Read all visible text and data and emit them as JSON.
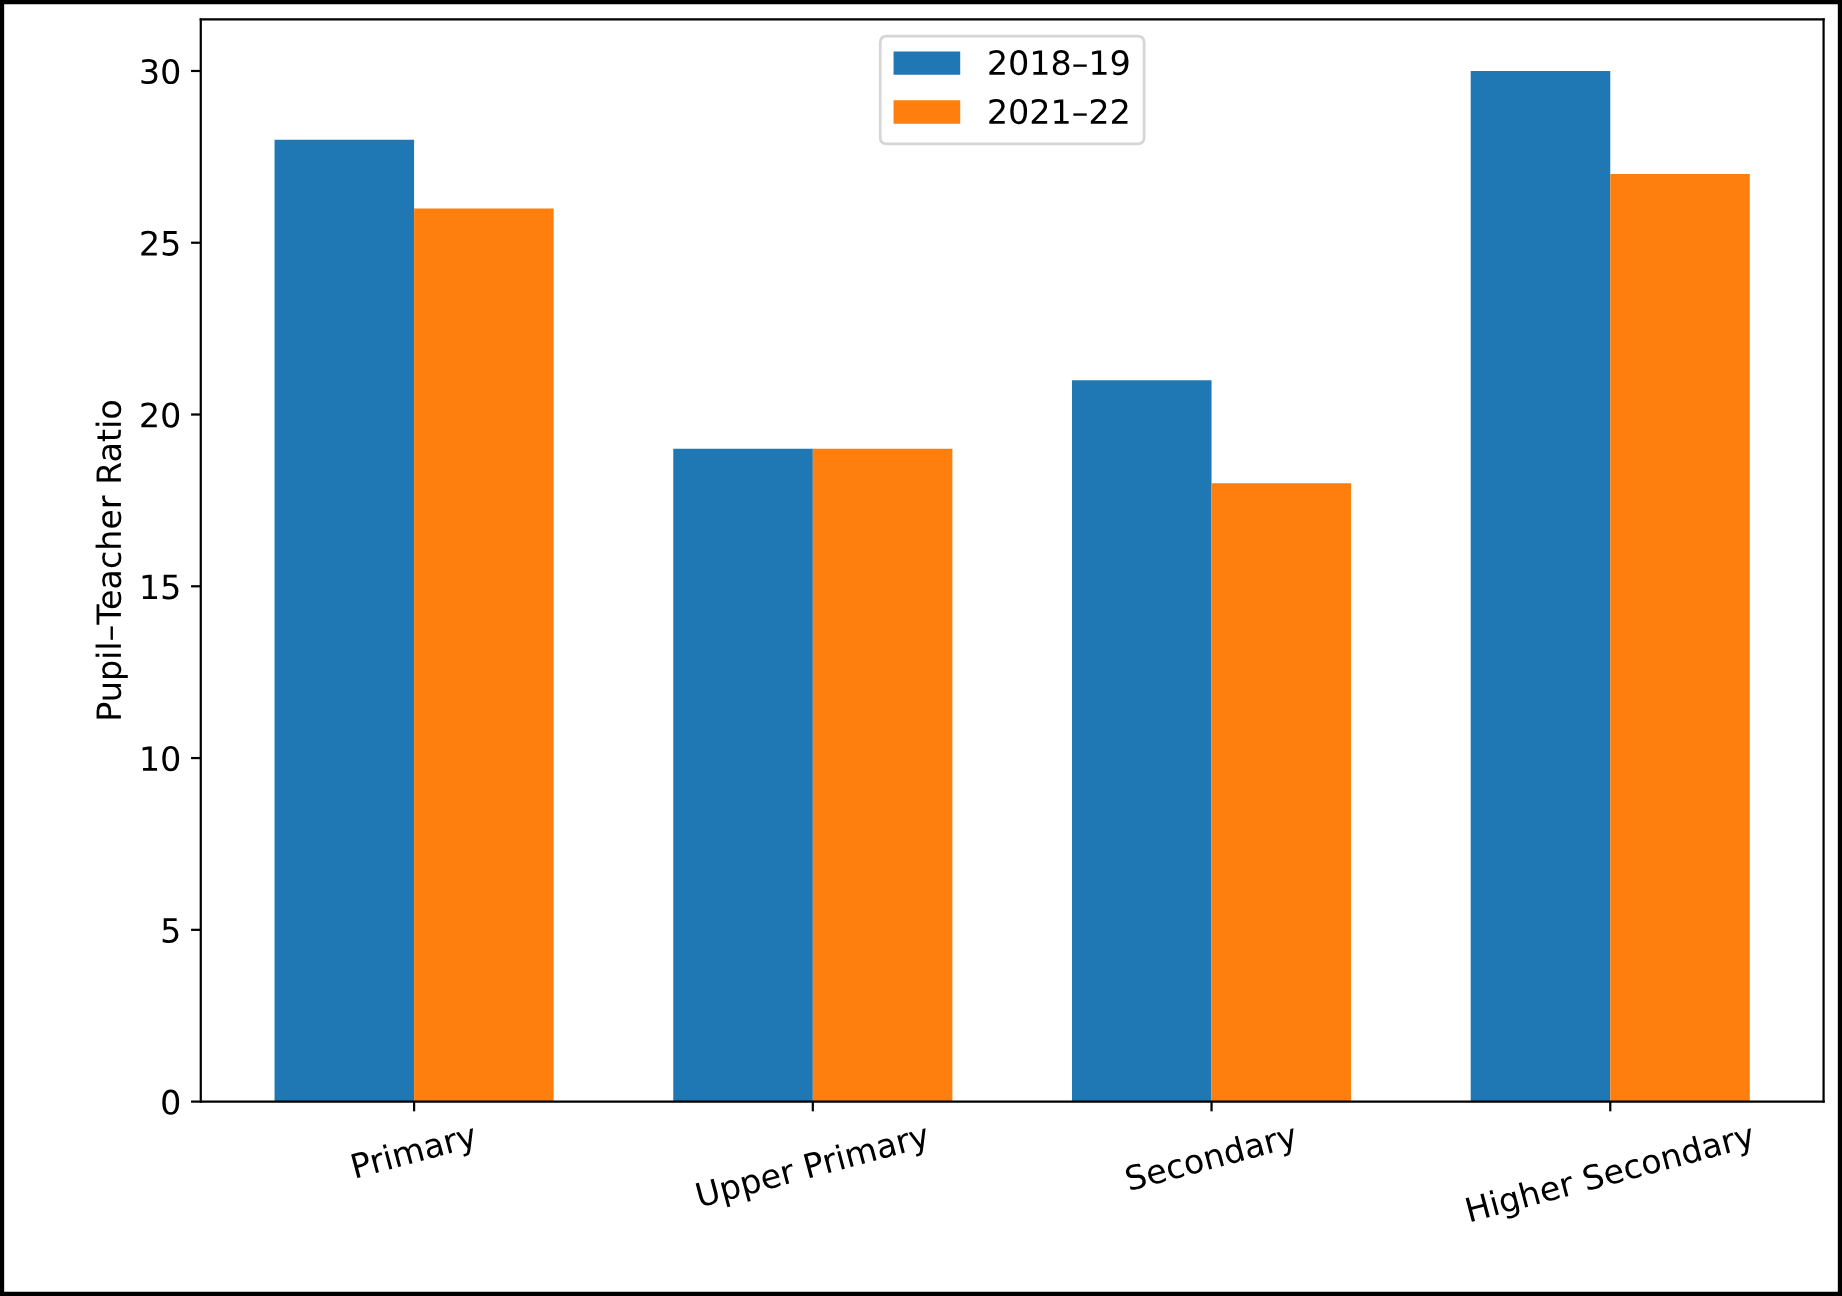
{
  "chart_data": {
    "type": "bar",
    "ylabel": "Pupil–Teacher Ratio",
    "categories": [
      "Primary",
      "Upper Primary",
      "Secondary",
      "Higher Secondary"
    ],
    "series": [
      {
        "name": "2018–19",
        "color": "#1f77b4",
        "values": [
          28,
          19,
          21,
          30
        ]
      },
      {
        "name": "2021–22",
        "color": "#ff7f0e",
        "values": [
          26,
          19,
          18,
          27
        ]
      }
    ],
    "ylim": [
      0,
      31.5
    ],
    "yticks": [
      0,
      5,
      10,
      15,
      20,
      25,
      30
    ],
    "grid": false,
    "legend": "top"
  }
}
